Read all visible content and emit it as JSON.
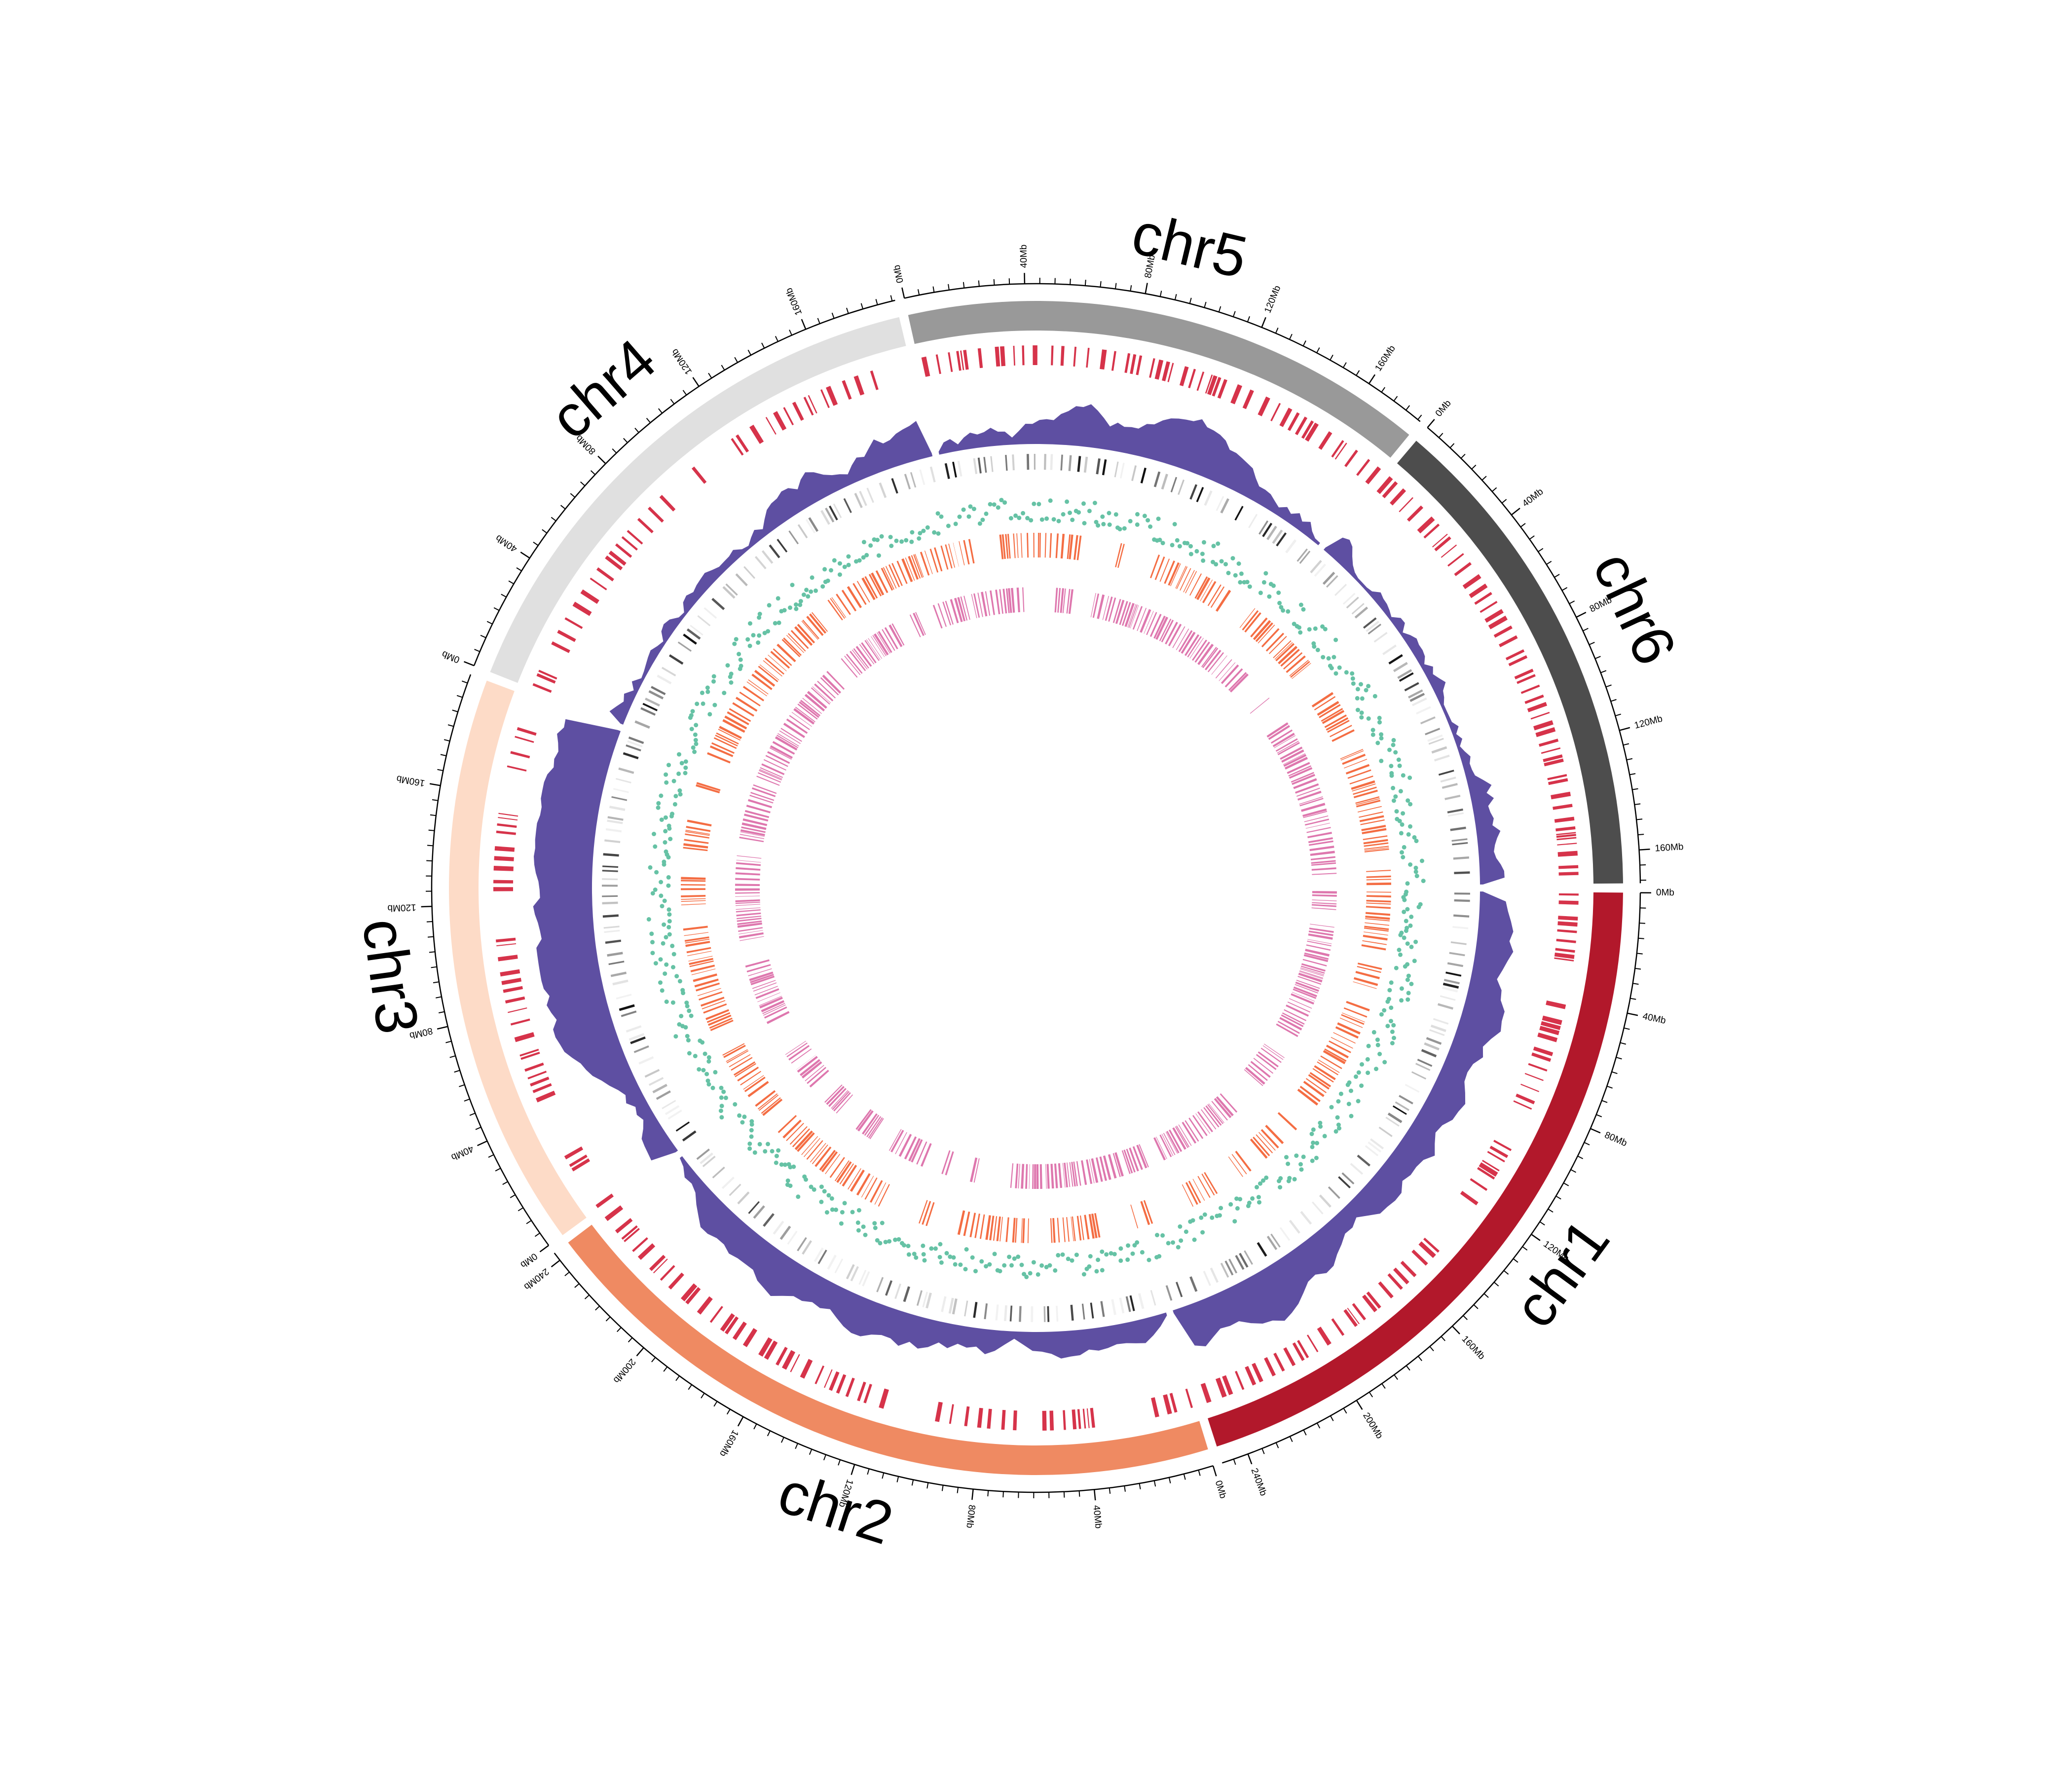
{
  "chart_data": {
    "type": "circos",
    "units": "Mb",
    "tick_step_major": 40,
    "tick_step_minor": 5,
    "chromosomes": [
      {
        "name": "chr1",
        "length": 249,
        "color": "#b2182b"
      },
      {
        "name": "chr2",
        "length": 243,
        "color": "#ef8a62"
      },
      {
        "name": "chr3",
        "length": 198,
        "color": "#fddbc7"
      },
      {
        "name": "chr4",
        "length": 191,
        "color": "#e0e0e0"
      },
      {
        "name": "chr5",
        "length": 181,
        "color": "#999999"
      },
      {
        "name": "chr6",
        "length": 171,
        "color": "#4d4d4d"
      }
    ],
    "tracks": [
      {
        "name": "red-segments",
        "type": "segments",
        "color": "#d6334a"
      },
      {
        "name": "purple-density",
        "type": "area",
        "color": "#5e4fa2"
      },
      {
        "name": "gray-heatmap",
        "type": "heatmap",
        "color": "#000000"
      },
      {
        "name": "green-points",
        "type": "scatter",
        "color": "#66c2a5"
      },
      {
        "name": "orange-segments",
        "type": "segments",
        "color": "#f46d43"
      },
      {
        "name": "pink-segments",
        "type": "segments",
        "color": "#de77ae"
      }
    ]
  }
}
